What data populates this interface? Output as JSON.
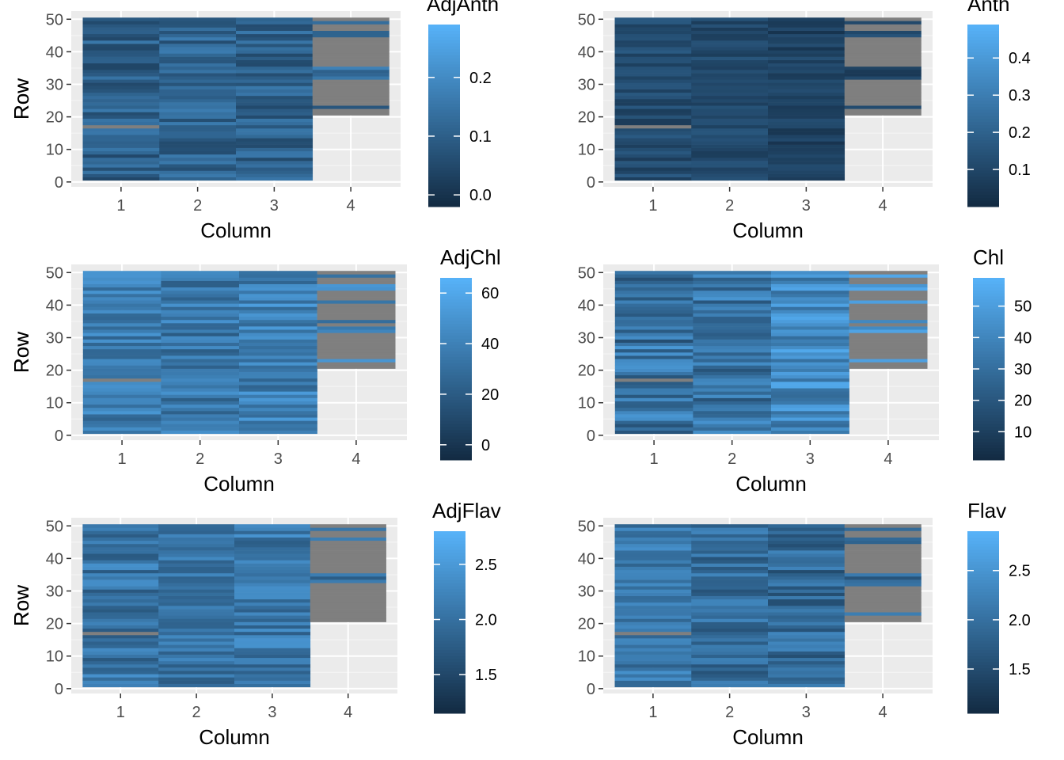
{
  "chart_data": [
    {
      "type": "heatmap",
      "fill_variable": "AdjAnth",
      "xlabel": "Column",
      "ylabel": "Row",
      "x_ticks": [
        1,
        2,
        3,
        4
      ],
      "y_ticks": [
        0,
        10,
        20,
        30,
        40,
        50
      ],
      "xlim": [
        0.35,
        4.65
      ],
      "ylim": [
        -1.5,
        52.5
      ],
      "legend": {
        "title": "AdjAnth",
        "range": [
          -0.02,
          0.29
        ],
        "breaks": [
          0.0,
          0.1,
          0.2
        ],
        "labels": [
          "0.0",
          "0.1",
          "0.2"
        ]
      },
      "na_color": "#7f7f7f",
      "low_color": "#132b43",
      "high_color": "#56b1f7",
      "columns": [
        {
          "col": 1,
          "rows": [
            1,
            50
          ],
          "base": 0.1,
          "spread": 0.06,
          "na_rows": [
            17
          ]
        },
        {
          "col": 2,
          "rows": [
            1,
            50
          ],
          "base": 0.11,
          "spread": 0.06,
          "na_rows": []
        },
        {
          "col": 3,
          "rows": [
            1,
            50
          ],
          "base": 0.1,
          "spread": 0.06,
          "na_rows": []
        },
        {
          "col": 4,
          "rows": [
            21,
            50
          ],
          "base": 0.12,
          "spread": 0.06,
          "na_rows": [
            21,
            22,
            24,
            25,
            26,
            27,
            28,
            29,
            30,
            31,
            36,
            37,
            38,
            39,
            40,
            41,
            42,
            43,
            44,
            47,
            48,
            50
          ]
        }
      ]
    },
    {
      "type": "heatmap",
      "fill_variable": "Anth",
      "xlabel": "Column",
      "ylabel": "Row",
      "x_ticks": [
        1,
        2,
        3,
        4
      ],
      "y_ticks": [
        0,
        10,
        20,
        30,
        40,
        50
      ],
      "xlim": [
        0.35,
        4.65
      ],
      "ylim": [
        -1.5,
        52.5
      ],
      "legend": {
        "title": "Anth",
        "range": [
          0.0,
          0.49
        ],
        "breaks": [
          0.1,
          0.2,
          0.3,
          0.4
        ],
        "labels": [
          "0.1",
          "0.2",
          "0.3",
          "0.4"
        ]
      },
      "na_color": "#7f7f7f",
      "low_color": "#132b43",
      "high_color": "#56b1f7",
      "columns": [
        {
          "col": 1,
          "rows": [
            1,
            50
          ],
          "base": 0.12,
          "spread": 0.06,
          "na_rows": [
            17
          ]
        },
        {
          "col": 2,
          "rows": [
            1,
            50
          ],
          "base": 0.11,
          "spread": 0.05,
          "na_rows": []
        },
        {
          "col": 3,
          "rows": [
            1,
            50
          ],
          "base": 0.08,
          "spread": 0.05,
          "na_rows": []
        },
        {
          "col": 4,
          "rows": [
            21,
            50
          ],
          "base": 0.1,
          "spread": 0.05,
          "na_rows": [
            21,
            22,
            24,
            25,
            26,
            27,
            28,
            29,
            30,
            31,
            36,
            37,
            38,
            39,
            40,
            41,
            42,
            43,
            44,
            47,
            48,
            50
          ]
        }
      ]
    },
    {
      "type": "heatmap",
      "fill_variable": "AdjChl",
      "xlabel": "Column",
      "ylabel": "Row",
      "x_ticks": [
        1,
        2,
        3,
        4
      ],
      "y_ticks": [
        0,
        10,
        20,
        30,
        40,
        50
      ],
      "xlim": [
        0.35,
        4.65
      ],
      "ylim": [
        -1.5,
        52.5
      ],
      "legend": {
        "title": "AdjChl",
        "range": [
          -6,
          66
        ],
        "breaks": [
          0,
          20,
          40,
          60
        ],
        "labels": [
          "0",
          "20",
          "40",
          "60"
        ]
      },
      "na_color": "#7f7f7f",
      "low_color": "#132b43",
      "high_color": "#56b1f7",
      "columns": [
        {
          "col": 1,
          "rows": [
            1,
            50
          ],
          "base": 38,
          "spread": 14,
          "na_rows": [
            17
          ]
        },
        {
          "col": 2,
          "rows": [
            1,
            50
          ],
          "base": 35,
          "spread": 15,
          "na_rows": []
        },
        {
          "col": 3,
          "rows": [
            1,
            50
          ],
          "base": 40,
          "spread": 16,
          "na_rows": []
        },
        {
          "col": 4,
          "rows": [
            21,
            50
          ],
          "base": 40,
          "spread": 15,
          "na_rows": [
            21,
            22,
            24,
            25,
            26,
            27,
            28,
            29,
            30,
            31,
            34,
            36,
            37,
            38,
            39,
            40,
            42,
            43,
            44,
            47,
            48,
            50
          ]
        }
      ]
    },
    {
      "type": "heatmap",
      "fill_variable": "Chl",
      "xlabel": "Column",
      "ylabel": "Row",
      "x_ticks": [
        1,
        2,
        3,
        4
      ],
      "y_ticks": [
        0,
        10,
        20,
        30,
        40,
        50
      ],
      "xlim": [
        0.35,
        4.65
      ],
      "ylim": [
        -1.5,
        52.5
      ],
      "legend": {
        "title": "Chl",
        "range": [
          1,
          59
        ],
        "breaks": [
          10,
          20,
          30,
          40,
          50
        ],
        "labels": [
          "10",
          "20",
          "30",
          "40",
          "50"
        ]
      },
      "na_color": "#7f7f7f",
      "low_color": "#132b43",
      "high_color": "#56b1f7",
      "columns": [
        {
          "col": 1,
          "rows": [
            1,
            50
          ],
          "base": 32,
          "spread": 16,
          "na_rows": [
            17
          ]
        },
        {
          "col": 2,
          "rows": [
            1,
            50
          ],
          "base": 34,
          "spread": 16,
          "na_rows": []
        },
        {
          "col": 3,
          "rows": [
            1,
            50
          ],
          "base": 42,
          "spread": 14,
          "na_rows": []
        },
        {
          "col": 4,
          "rows": [
            21,
            50
          ],
          "base": 42,
          "spread": 14,
          "na_rows": [
            21,
            22,
            24,
            25,
            26,
            27,
            28,
            29,
            30,
            31,
            34,
            36,
            37,
            38,
            39,
            40,
            42,
            43,
            44,
            47,
            48,
            50
          ]
        }
      ]
    },
    {
      "type": "heatmap",
      "fill_variable": "AdjFlav",
      "xlabel": "Column",
      "ylabel": "Row",
      "x_ticks": [
        1,
        2,
        3,
        4
      ],
      "y_ticks": [
        0,
        10,
        20,
        30,
        40,
        50
      ],
      "xlim": [
        0.35,
        4.65
      ],
      "ylim": [
        -1.5,
        52.5
      ],
      "legend": {
        "title": "AdjFlav",
        "range": [
          1.15,
          2.8
        ],
        "breaks": [
          1.5,
          2.0,
          2.5
        ],
        "labels": [
          "1.5",
          "2.0",
          "2.5"
        ]
      },
      "na_color": "#7f7f7f",
      "low_color": "#132b43",
      "high_color": "#56b1f7",
      "columns": [
        {
          "col": 1,
          "rows": [
            1,
            50
          ],
          "base": 2.05,
          "spread": 0.35,
          "na_rows": [
            17
          ]
        },
        {
          "col": 2,
          "rows": [
            1,
            50
          ],
          "base": 2.05,
          "spread": 0.3,
          "na_rows": []
        },
        {
          "col": 3,
          "rows": [
            1,
            50
          ],
          "base": 2.1,
          "spread": 0.35,
          "na_rows": []
        },
        {
          "col": 4,
          "rows": [
            21,
            50
          ],
          "base": 1.9,
          "spread": 0.35,
          "na_rows": [
            21,
            22,
            23,
            24,
            25,
            26,
            27,
            28,
            29,
            30,
            31,
            32,
            36,
            37,
            38,
            39,
            40,
            41,
            42,
            43,
            44,
            45,
            47,
            48,
            50
          ]
        }
      ]
    },
    {
      "type": "heatmap",
      "fill_variable": "Flav",
      "xlabel": "Column",
      "ylabel": "Row",
      "x_ticks": [
        1,
        2,
        3,
        4
      ],
      "y_ticks": [
        0,
        10,
        20,
        30,
        40,
        50
      ],
      "xlim": [
        0.35,
        4.65
      ],
      "ylim": [
        -1.5,
        52.5
      ],
      "legend": {
        "title": "Flav",
        "range": [
          1.05,
          2.9
        ],
        "breaks": [
          1.5,
          2.0,
          2.5
        ],
        "labels": [
          "1.5",
          "2.0",
          "2.5"
        ]
      },
      "na_color": "#7f7f7f",
      "low_color": "#132b43",
      "high_color": "#56b1f7",
      "columns": [
        {
          "col": 1,
          "rows": [
            1,
            50
          ],
          "base": 2.1,
          "spread": 0.35,
          "na_rows": [
            17
          ]
        },
        {
          "col": 2,
          "rows": [
            1,
            50
          ],
          "base": 1.95,
          "spread": 0.35,
          "na_rows": []
        },
        {
          "col": 3,
          "rows": [
            1,
            50
          ],
          "base": 1.9,
          "spread": 0.4,
          "na_rows": []
        },
        {
          "col": 4,
          "rows": [
            21,
            50
          ],
          "base": 1.85,
          "spread": 0.35,
          "na_rows": [
            21,
            22,
            24,
            25,
            26,
            27,
            28,
            29,
            30,
            31,
            36,
            37,
            38,
            39,
            40,
            41,
            42,
            43,
            44,
            47,
            48,
            50
          ]
        }
      ]
    }
  ]
}
